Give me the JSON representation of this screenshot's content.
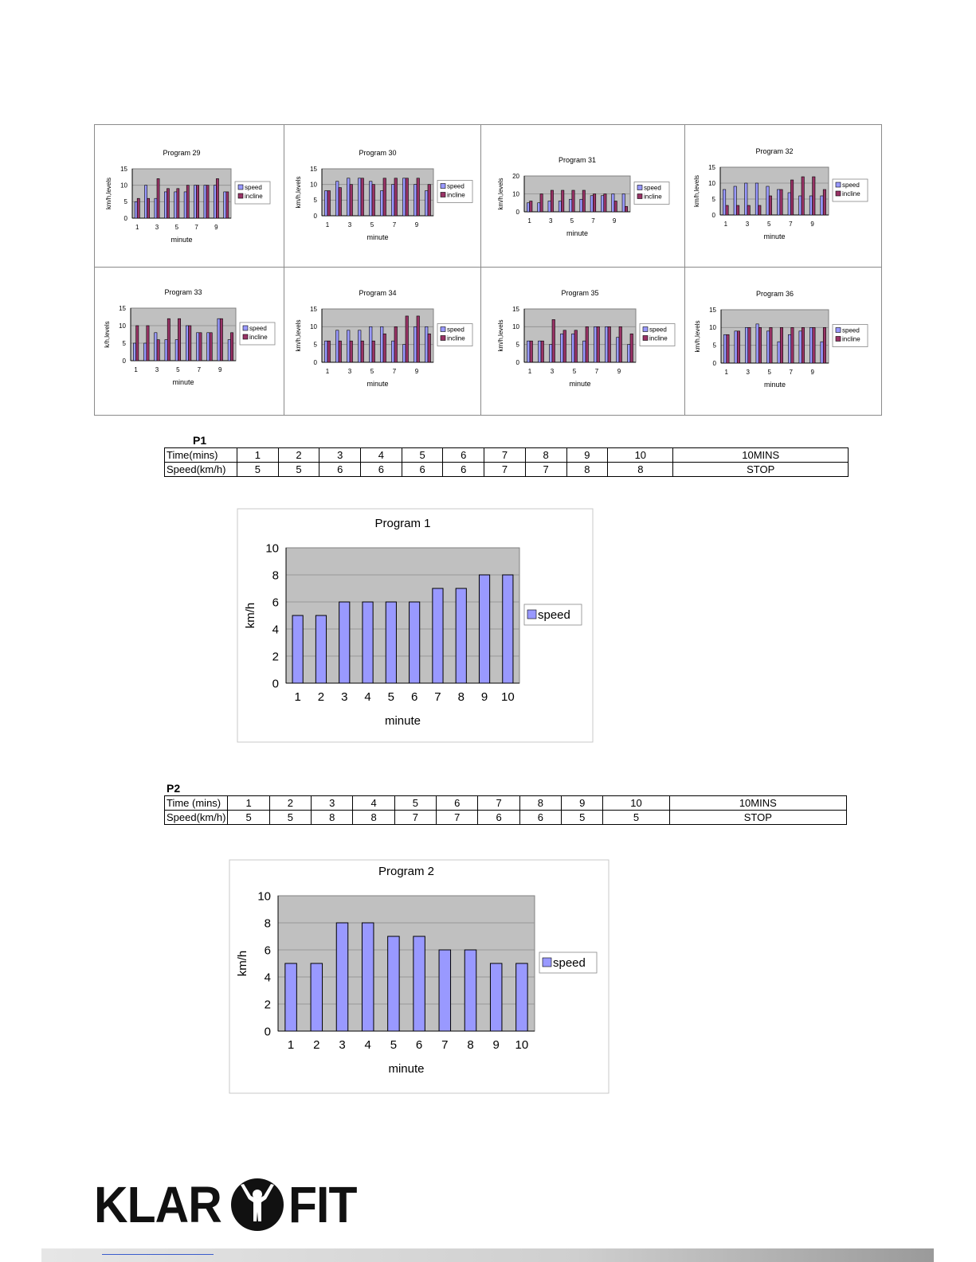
{
  "chart_data": [
    {
      "type": "bar",
      "title": "Program 29",
      "xlabel": "minute",
      "ylabel": "km/h,levels",
      "ylim": [
        0,
        15
      ],
      "yticks": [
        0,
        5,
        10,
        15
      ],
      "categories": [
        1,
        2,
        3,
        4,
        5,
        6,
        7,
        8,
        9,
        10
      ],
      "xtick_labels": [
        "1",
        "3",
        "5",
        "7",
        "9"
      ],
      "series": [
        {
          "name": "speed",
          "values": [
            5,
            10,
            6,
            8,
            8,
            8,
            10,
            10,
            10,
            8
          ]
        },
        {
          "name": "incline",
          "values": [
            6,
            6,
            12,
            9,
            9,
            10,
            10,
            10,
            12,
            8
          ]
        }
      ],
      "legend": "right"
    },
    {
      "type": "bar",
      "title": "Program 30",
      "xlabel": "minute",
      "ylabel": "km/h,levels",
      "ylim": [
        0,
        15
      ],
      "yticks": [
        0,
        5,
        10,
        15
      ],
      "categories": [
        1,
        2,
        3,
        4,
        5,
        6,
        7,
        8,
        9,
        10
      ],
      "xtick_labels": [
        "1",
        "3",
        "5",
        "7",
        "9"
      ],
      "series": [
        {
          "name": "speed",
          "values": [
            8,
            11,
            12,
            12,
            11,
            8,
            10,
            12,
            10,
            8
          ]
        },
        {
          "name": "incline",
          "values": [
            8,
            9,
            10,
            12,
            10,
            12,
            12,
            12,
            12,
            10
          ]
        }
      ],
      "legend": "right"
    },
    {
      "type": "bar",
      "title": "Program 31",
      "xlabel": "minute",
      "ylabel": "km/h,levels",
      "ylim": [
        0,
        20
      ],
      "yticks": [
        0,
        10,
        20
      ],
      "categories": [
        1,
        2,
        3,
        4,
        5,
        6,
        7,
        8,
        9,
        10
      ],
      "xtick_labels": [
        "1",
        "3",
        "5",
        "7",
        "9"
      ],
      "series": [
        {
          "name": "speed",
          "values": [
            5,
            5,
            6,
            6,
            7,
            7,
            9,
            9,
            10,
            10
          ]
        },
        {
          "name": "incline",
          "values": [
            6,
            10,
            12,
            12,
            12,
            12,
            10,
            10,
            6,
            3
          ]
        }
      ],
      "legend": "right"
    },
    {
      "type": "bar",
      "title": "Program 32",
      "xlabel": "minute",
      "ylabel": "km/h,levels",
      "ylim": [
        0,
        15
      ],
      "yticks": [
        0,
        5,
        10,
        15
      ],
      "categories": [
        1,
        2,
        3,
        4,
        5,
        6,
        7,
        8,
        9,
        10
      ],
      "xtick_labels": [
        "1",
        "3",
        "5",
        "7",
        "9"
      ],
      "series": [
        {
          "name": "speed",
          "values": [
            8,
            9,
            10,
            10,
            9,
            8,
            7,
            6,
            6,
            6
          ]
        },
        {
          "name": "incline",
          "values": [
            3,
            3,
            3,
            3,
            6,
            8,
            11,
            12,
            12,
            8
          ]
        }
      ],
      "legend": "right"
    },
    {
      "type": "bar",
      "title": "Program 33",
      "xlabel": "minute",
      "ylabel": "k/h,levels",
      "ylim": [
        0,
        15
      ],
      "yticks": [
        0,
        5,
        10,
        15
      ],
      "categories": [
        1,
        2,
        3,
        4,
        5,
        6,
        7,
        8,
        9,
        10
      ],
      "xtick_labels": [
        "1",
        "3",
        "5",
        "7",
        "9"
      ],
      "series": [
        {
          "name": "speed",
          "values": [
            5,
            5,
            8,
            6,
            6,
            10,
            8,
            8,
            12,
            6
          ]
        },
        {
          "name": "incline",
          "values": [
            10,
            10,
            6,
            12,
            12,
            10,
            8,
            8,
            12,
            8
          ]
        }
      ],
      "legend": "right"
    },
    {
      "type": "bar",
      "title": "Program 34",
      "xlabel": "minute",
      "ylabel": "km/h,levels",
      "ylim": [
        0,
        15
      ],
      "yticks": [
        0,
        5,
        10,
        15
      ],
      "categories": [
        1,
        2,
        3,
        4,
        5,
        6,
        7,
        8,
        9,
        10
      ],
      "xtick_labels": [
        "1",
        "3",
        "5",
        "7",
        "9"
      ],
      "series": [
        {
          "name": "speed",
          "values": [
            6,
            9,
            9,
            9,
            10,
            10,
            6,
            5,
            10,
            10
          ]
        },
        {
          "name": "incline",
          "values": [
            6,
            6,
            6,
            6,
            6,
            8,
            10,
            13,
            13,
            8
          ]
        }
      ],
      "legend": "right"
    },
    {
      "type": "bar",
      "title": "Program 35",
      "xlabel": "minute",
      "ylabel": "km/h,levels",
      "ylim": [
        0,
        15
      ],
      "yticks": [
        0,
        5,
        10,
        15
      ],
      "categories": [
        1,
        2,
        3,
        4,
        5,
        6,
        7,
        8,
        9,
        10
      ],
      "xtick_labels": [
        "1",
        "3",
        "5",
        "7",
        "9"
      ],
      "series": [
        {
          "name": "speed",
          "values": [
            6,
            6,
            5,
            8,
            8,
            6,
            10,
            10,
            7,
            5
          ]
        },
        {
          "name": "incline",
          "values": [
            6,
            6,
            12,
            9,
            9,
            10,
            10,
            10,
            10,
            8
          ]
        }
      ],
      "legend": "right"
    },
    {
      "type": "bar",
      "title": "Program 36",
      "xlabel": "minute",
      "ylabel": "km/h,levels",
      "ylim": [
        0,
        15
      ],
      "yticks": [
        0,
        5,
        10,
        15
      ],
      "categories": [
        1,
        2,
        3,
        4,
        5,
        6,
        7,
        8,
        9,
        10
      ],
      "xtick_labels": [
        "1",
        "3",
        "5",
        "7",
        "9"
      ],
      "series": [
        {
          "name": "speed",
          "values": [
            8,
            9,
            10,
            11,
            9,
            6,
            8,
            9,
            10,
            6
          ]
        },
        {
          "name": "incline",
          "values": [
            8,
            9,
            10,
            10,
            10,
            10,
            10,
            10,
            10,
            10
          ]
        }
      ],
      "legend": "right"
    },
    {
      "type": "bar",
      "title": "Program 1",
      "xlabel": "minute",
      "ylabel": "km/h",
      "ylim": [
        0,
        10
      ],
      "yticks": [
        0,
        2,
        4,
        6,
        8,
        10
      ],
      "categories": [
        1,
        2,
        3,
        4,
        5,
        6,
        7,
        8,
        9,
        10
      ],
      "xtick_labels": [
        "1",
        "2",
        "3",
        "4",
        "5",
        "6",
        "7",
        "8",
        "9",
        "10"
      ],
      "series": [
        {
          "name": "speed",
          "values": [
            5,
            5,
            6,
            6,
            6,
            6,
            7,
            7,
            8,
            8
          ]
        }
      ],
      "legend": "right"
    },
    {
      "type": "bar",
      "title": "Program 2",
      "xlabel": "minute",
      "ylabel": "km/h",
      "ylim": [
        0,
        10
      ],
      "yticks": [
        0,
        2,
        4,
        6,
        8,
        10
      ],
      "categories": [
        1,
        2,
        3,
        4,
        5,
        6,
        7,
        8,
        9,
        10
      ],
      "xtick_labels": [
        "1",
        "2",
        "3",
        "4",
        "5",
        "6",
        "7",
        "8",
        "9",
        "10"
      ],
      "series": [
        {
          "name": "speed",
          "values": [
            5,
            5,
            8,
            8,
            7,
            7,
            6,
            6,
            5,
            5
          ]
        }
      ],
      "legend": "right"
    }
  ],
  "colors": {
    "speed": "#9999ff",
    "incline": "#993366",
    "plot_bg": "#c0c0c0",
    "border": "#8a8a8a"
  },
  "tables": {
    "p1": {
      "label": "P1",
      "time_header": "Time(mins)",
      "speed_header": "Speed(km/h)",
      "times": [
        "1",
        "2",
        "3",
        "4",
        "5",
        "6",
        "7",
        "8",
        "9",
        "10",
        "10MINS"
      ],
      "speeds": [
        "5",
        "5",
        "6",
        "6",
        "6",
        "6",
        "7",
        "7",
        "8",
        "8",
        "STOP"
      ]
    },
    "p2": {
      "label": "P2",
      "time_header": "Time (mins)",
      "speed_header": "Speed(km/h)",
      "times": [
        "1",
        "2",
        "3",
        "4",
        "5",
        "6",
        "7",
        "8",
        "9",
        "10",
        "10MINS"
      ],
      "speeds": [
        "5",
        "5",
        "8",
        "8",
        "7",
        "7",
        "6",
        "6",
        "5",
        "5",
        "STOP"
      ]
    }
  },
  "logo": {
    "left": "KLAR",
    "right": "FIT",
    "icon": "person-arms-raised-icon"
  }
}
